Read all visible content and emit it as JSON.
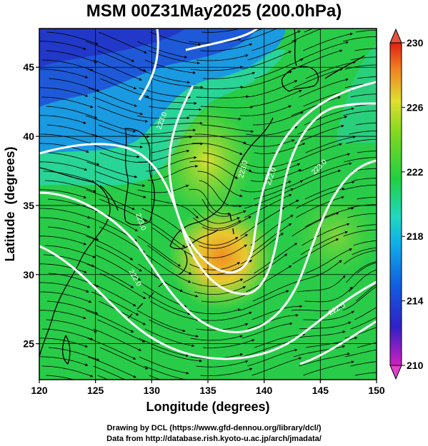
{
  "title": "MSM 00Z31May2025 (200.0hPa)",
  "map": {
    "lon_range": [
      120,
      150
    ],
    "lat_range": [
      22.4,
      47.8
    ],
    "xlabel": "Longitude (degrees)",
    "ylabel": "Latitude  (degrees)",
    "x_ticks": [
      "120",
      "125",
      "130",
      "135",
      "140",
      "145",
      "150"
    ],
    "y_ticks": [
      "25",
      "30",
      "35",
      "40",
      "45"
    ],
    "grid": true
  },
  "colorbar": {
    "min": 210,
    "max": 230,
    "tick_labels": [
      "230",
      "226",
      "222",
      "218",
      "214",
      "210"
    ],
    "colors": [
      "#d020c0",
      "#2030d0",
      "#1090e8",
      "#20d8c8",
      "#20d040",
      "#60d020",
      "#d8e030",
      "#f09020",
      "#e03010"
    ]
  },
  "contours": [
    {
      "label": "223.0"
    },
    {
      "label": "223.0"
    },
    {
      "label": "223.0"
    },
    {
      "label": "223.0"
    },
    {
      "label": "222.0"
    },
    {
      "label": "222.0"
    },
    {
      "label": "222.0"
    }
  ],
  "credits": {
    "line1": "Drawing by DCL (https://www.gfd-dennou.org/library/dcl/)",
    "line2": "Data from http://database.rish.kyoto-u.ac.jp/arch/jmadata/"
  }
}
